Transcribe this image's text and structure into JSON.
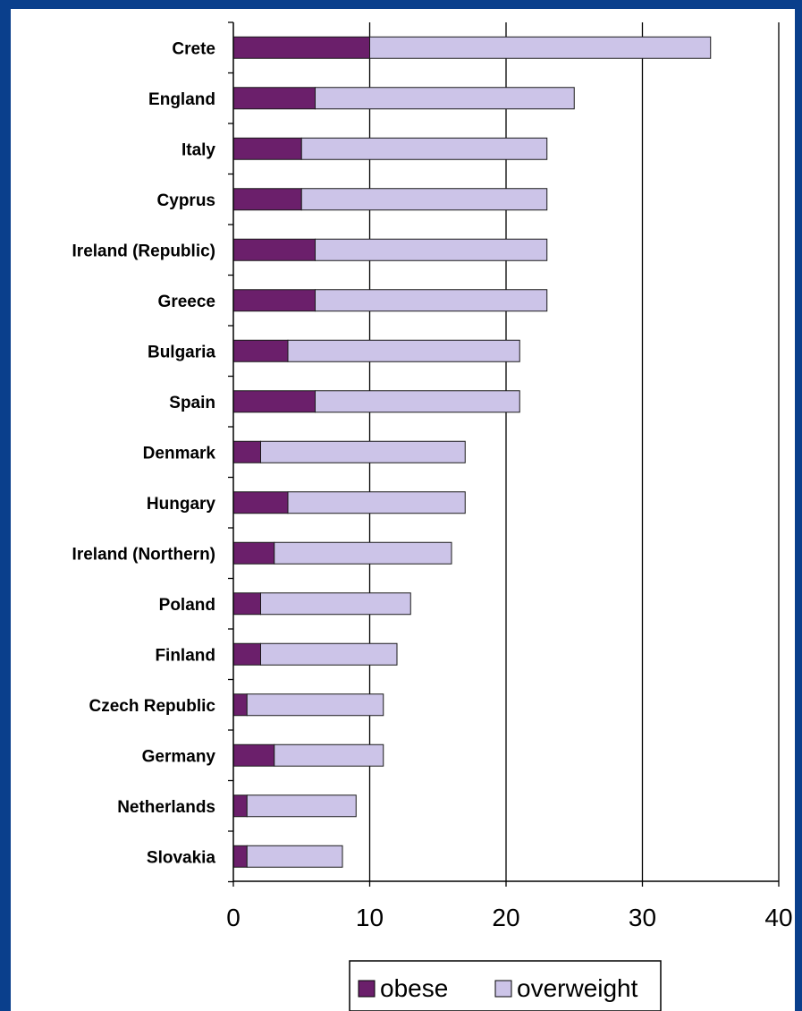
{
  "chart_data": {
    "type": "bar",
    "orientation": "horizontal",
    "stacked": true,
    "categories": [
      "Crete",
      "England",
      "Italy",
      "Cyprus",
      "Ireland (Republic)",
      "Greece",
      "Bulgaria",
      "Spain",
      "Denmark",
      "Hungary",
      "Ireland (Northern)",
      "Poland",
      "Finland",
      "Czech Republic",
      "Germany",
      "Netherlands",
      "Slovakia"
    ],
    "series": [
      {
        "name": "obese",
        "values": [
          10,
          6,
          5,
          5,
          6,
          6,
          4,
          6,
          2,
          4,
          3,
          2,
          2,
          1,
          3,
          1,
          1
        ]
      },
      {
        "name": "overweight",
        "values": [
          25,
          19,
          18,
          18,
          17,
          17,
          17,
          15,
          15,
          13,
          13,
          11,
          10,
          10,
          8,
          8,
          7
        ]
      }
    ],
    "xticks": [
      "0",
      "10",
      "20",
      "30",
      "40"
    ],
    "xlim": [
      0,
      40
    ],
    "grid": "vertical",
    "legend": "bottom",
    "colors": {
      "obese": "#6b1f6b",
      "overweight": "#ccc4e8",
      "background": "#0a3f8c"
    }
  }
}
